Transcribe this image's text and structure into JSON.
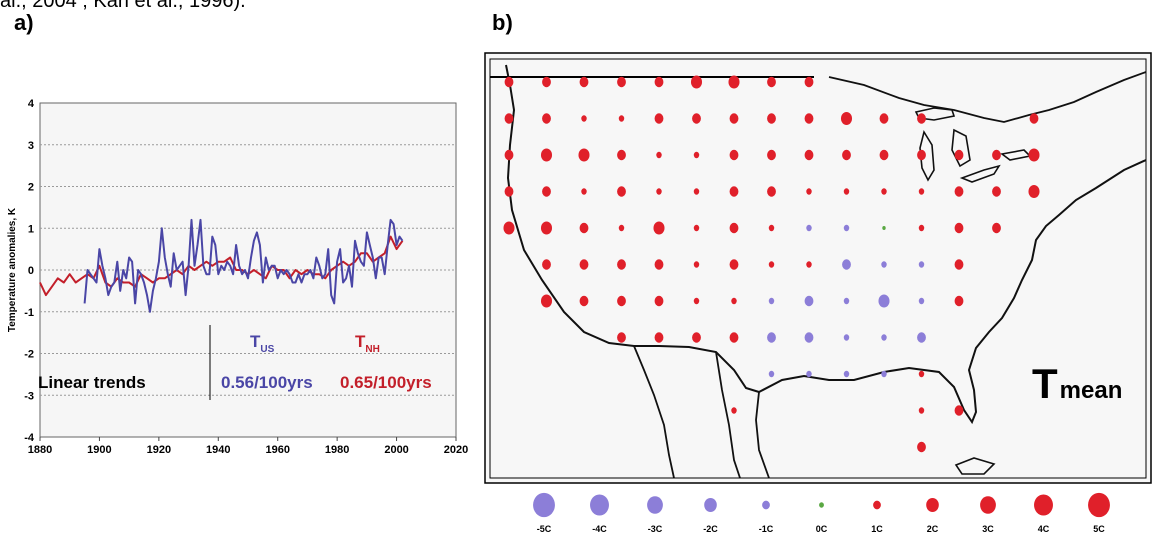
{
  "top_text": "al., 2004 ; Karl et al., 1996).",
  "panel_a_label": "a)",
  "panel_b_label": "b)",
  "colors": {
    "us_series": "#4a46a6",
    "nh_series": "#c31f2a",
    "dot_red": "#e0202a",
    "dot_blue": "#8c7ed8",
    "dot_green": "#5aa843",
    "grid": "#9a9a9a"
  },
  "chart_data": [
    {
      "type": "line",
      "title": "",
      "xlabel": "",
      "ylabel": "Temperature anomalies, K",
      "xlim": [
        1880,
        2020
      ],
      "ylim": [
        -4,
        4
      ],
      "xticks": [
        "1880",
        "1900",
        "1920",
        "1940",
        "1960",
        "1980",
        "2000",
        "2020"
      ],
      "yticks": [
        "-4",
        "-3",
        "-2",
        "-1",
        "0",
        "1",
        "2",
        "3",
        "4"
      ],
      "grid": "horizontal dashed",
      "legend_labels": {
        "linear_trends_label": "Linear trends",
        "us_label": "T",
        "us_sub": "US",
        "nh_label": "T",
        "nh_sub": "NH",
        "us_trend": "0.56/100yrs",
        "nh_trend": "0.65/100yrs"
      },
      "series": [
        {
          "name": "T_US",
          "color": "#4a46a6",
          "x": [
            1895,
            1896,
            1897,
            1898,
            1899,
            1900,
            1901,
            1902,
            1903,
            1904,
            1905,
            1906,
            1907,
            1908,
            1909,
            1910,
            1911,
            1912,
            1913,
            1914,
            1915,
            1916,
            1917,
            1918,
            1919,
            1920,
            1921,
            1922,
            1923,
            1924,
            1925,
            1926,
            1927,
            1928,
            1929,
            1930,
            1931,
            1932,
            1933,
            1934,
            1935,
            1936,
            1937,
            1938,
            1939,
            1940,
            1941,
            1942,
            1943,
            1944,
            1945,
            1946,
            1947,
            1948,
            1949,
            1950,
            1951,
            1952,
            1953,
            1954,
            1955,
            1956,
            1957,
            1958,
            1959,
            1960,
            1961,
            1962,
            1963,
            1964,
            1965,
            1966,
            1967,
            1968,
            1969,
            1970,
            1971,
            1972,
            1973,
            1974,
            1975,
            1976,
            1977,
            1978,
            1979,
            1980,
            1981,
            1982,
            1983,
            1984,
            1985,
            1986,
            1987,
            1988,
            1989,
            1990,
            1991,
            1992,
            1993,
            1994,
            1995,
            1996,
            1997,
            1998,
            1999,
            2000,
            2001,
            2002
          ],
          "y": [
            -0.8,
            0.0,
            -0.1,
            -0.2,
            -0.3,
            0.5,
            0.1,
            -0.2,
            -0.6,
            -0.4,
            -0.3,
            0.2,
            -0.5,
            0.0,
            -0.2,
            0.3,
            0.2,
            -0.8,
            0.0,
            -0.1,
            -0.3,
            -0.6,
            -1.0,
            -0.5,
            -0.2,
            0.2,
            1.0,
            0.3,
            -0.1,
            -0.4,
            0.4,
            0.0,
            0.1,
            0.2,
            -0.6,
            0.1,
            1.2,
            0.1,
            0.6,
            1.2,
            0.1,
            -0.1,
            -0.1,
            0.8,
            0.6,
            -0.1,
            0.1,
            0.0,
            0.2,
            0.1,
            -0.1,
            0.6,
            0.1,
            -0.1,
            0.0,
            -0.2,
            0.3,
            0.7,
            0.9,
            0.6,
            -0.3,
            0.3,
            0.0,
            0.1,
            0.1,
            -0.2,
            0.0,
            -0.1,
            0.0,
            -0.1,
            -0.3,
            -0.3,
            -0.1,
            -0.3,
            -0.1,
            -0.1,
            0.0,
            -0.2,
            0.3,
            0.1,
            -0.2,
            -0.1,
            0.5,
            -0.6,
            -0.8,
            0.2,
            0.5,
            -0.3,
            -0.2,
            0.1,
            -0.4,
            0.7,
            0.4,
            0.2,
            0.1,
            0.9,
            0.6,
            0.3,
            -0.2,
            0.3,
            0.3,
            -0.1,
            0.6,
            1.2,
            1.1,
            0.6,
            0.8,
            0.7
          ]
        },
        {
          "name": "T_NH",
          "color": "#c31f2a",
          "x": [
            1880,
            1882,
            1884,
            1886,
            1888,
            1890,
            1892,
            1894,
            1896,
            1898,
            1900,
            1902,
            1904,
            1906,
            1908,
            1910,
            1912,
            1914,
            1916,
            1918,
            1920,
            1922,
            1924,
            1926,
            1928,
            1930,
            1932,
            1934,
            1936,
            1938,
            1940,
            1942,
            1944,
            1946,
            1948,
            1950,
            1952,
            1954,
            1956,
            1958,
            1960,
            1962,
            1964,
            1966,
            1968,
            1970,
            1972,
            1974,
            1976,
            1978,
            1980,
            1982,
            1984,
            1986,
            1988,
            1990,
            1992,
            1994,
            1996,
            1998,
            2000,
            2002
          ],
          "y": [
            -0.3,
            -0.6,
            -0.4,
            -0.2,
            -0.3,
            -0.1,
            -0.3,
            -0.2,
            -0.1,
            -0.2,
            0.1,
            -0.3,
            -0.4,
            -0.2,
            -0.3,
            -0.3,
            -0.4,
            -0.1,
            -0.2,
            -0.3,
            -0.2,
            -0.2,
            -0.1,
            0.0,
            -0.1,
            0.1,
            0.0,
            0.1,
            0.2,
            0.1,
            0.2,
            0.2,
            0.3,
            0.0,
            0.0,
            -0.1,
            0.0,
            -0.1,
            -0.2,
            0.1,
            0.0,
            0.0,
            -0.2,
            0.0,
            -0.1,
            0.0,
            -0.1,
            -0.1,
            -0.2,
            0.0,
            0.1,
            0.2,
            0.1,
            0.2,
            0.4,
            0.4,
            0.2,
            0.3,
            0.4,
            0.8,
            0.5,
            0.7
          ]
        }
      ]
    },
    {
      "type": "scatter",
      "title": "",
      "annotation_main": "T",
      "annotation_sub": "mean",
      "legend": {
        "placement": "bottom",
        "entries": [
          {
            "label": "-5C",
            "value": -5
          },
          {
            "label": "-4C",
            "value": -4
          },
          {
            "label": "-3C",
            "value": -3
          },
          {
            "label": "-2C",
            "value": -2
          },
          {
            "label": "-1C",
            "value": -1
          },
          {
            "label": "0C",
            "value": 0
          },
          {
            "label": "1C",
            "value": 1
          },
          {
            "label": "2C",
            "value": 2
          },
          {
            "label": "3C",
            "value": 3
          },
          {
            "label": "4C",
            "value": 4
          },
          {
            "label": "5C",
            "value": 5
          }
        ]
      },
      "grid_columns": 16,
      "grid_rows": 11,
      "points": [
        {
          "col": 0,
          "row": 0,
          "value": 2
        },
        {
          "col": 1,
          "row": 0,
          "value": 2
        },
        {
          "col": 2,
          "row": 0,
          "value": 2
        },
        {
          "col": 3,
          "row": 0,
          "value": 2
        },
        {
          "col": 4,
          "row": 0,
          "value": 2
        },
        {
          "col": 5,
          "row": 0,
          "value": 3
        },
        {
          "col": 6,
          "row": 0,
          "value": 3
        },
        {
          "col": 7,
          "row": 0,
          "value": 2
        },
        {
          "col": 8,
          "row": 0,
          "value": 2
        },
        {
          "col": 0,
          "row": 1,
          "value": 2
        },
        {
          "col": 1,
          "row": 1,
          "value": 2
        },
        {
          "col": 2,
          "row": 1,
          "value": 1
        },
        {
          "col": 3,
          "row": 1,
          "value": 1
        },
        {
          "col": 4,
          "row": 1,
          "value": 2
        },
        {
          "col": 5,
          "row": 1,
          "value": 2
        },
        {
          "col": 6,
          "row": 1,
          "value": 2
        },
        {
          "col": 7,
          "row": 1,
          "value": 2
        },
        {
          "col": 8,
          "row": 1,
          "value": 2
        },
        {
          "col": 9,
          "row": 1,
          "value": 3
        },
        {
          "col": 10,
          "row": 1,
          "value": 2
        },
        {
          "col": 11,
          "row": 1,
          "value": 2
        },
        {
          "col": 14,
          "row": 1,
          "value": 2
        },
        {
          "col": 0,
          "row": 2,
          "value": 2
        },
        {
          "col": 1,
          "row": 2,
          "value": 3
        },
        {
          "col": 2,
          "row": 2,
          "value": 3
        },
        {
          "col": 3,
          "row": 2,
          "value": 2
        },
        {
          "col": 4,
          "row": 2,
          "value": 1
        },
        {
          "col": 5,
          "row": 2,
          "value": 1
        },
        {
          "col": 6,
          "row": 2,
          "value": 2
        },
        {
          "col": 7,
          "row": 2,
          "value": 2
        },
        {
          "col": 8,
          "row": 2,
          "value": 2
        },
        {
          "col": 9,
          "row": 2,
          "value": 2
        },
        {
          "col": 10,
          "row": 2,
          "value": 2
        },
        {
          "col": 11,
          "row": 2,
          "value": 2
        },
        {
          "col": 12,
          "row": 2,
          "value": 2
        },
        {
          "col": 13,
          "row": 2,
          "value": 2
        },
        {
          "col": 14,
          "row": 2,
          "value": 3
        },
        {
          "col": 0,
          "row": 3,
          "value": 2
        },
        {
          "col": 1,
          "row": 3,
          "value": 2
        },
        {
          "col": 2,
          "row": 3,
          "value": 1
        },
        {
          "col": 3,
          "row": 3,
          "value": 2
        },
        {
          "col": 4,
          "row": 3,
          "value": 1
        },
        {
          "col": 5,
          "row": 3,
          "value": 1
        },
        {
          "col": 6,
          "row": 3,
          "value": 2
        },
        {
          "col": 7,
          "row": 3,
          "value": 2
        },
        {
          "col": 8,
          "row": 3,
          "value": 1
        },
        {
          "col": 9,
          "row": 3,
          "value": 1
        },
        {
          "col": 10,
          "row": 3,
          "value": 1
        },
        {
          "col": 11,
          "row": 3,
          "value": 1
        },
        {
          "col": 12,
          "row": 3,
          "value": 2
        },
        {
          "col": 13,
          "row": 3,
          "value": 2
        },
        {
          "col": 14,
          "row": 3,
          "value": 3
        },
        {
          "col": 0,
          "row": 4,
          "value": 3
        },
        {
          "col": 1,
          "row": 4,
          "value": 3
        },
        {
          "col": 2,
          "row": 4,
          "value": 2
        },
        {
          "col": 3,
          "row": 4,
          "value": 1
        },
        {
          "col": 4,
          "row": 4,
          "value": 3
        },
        {
          "col": 5,
          "row": 4,
          "value": 1
        },
        {
          "col": 6,
          "row": 4,
          "value": 2
        },
        {
          "col": 7,
          "row": 4,
          "value": 1
        },
        {
          "col": 8,
          "row": 4,
          "value": -1
        },
        {
          "col": 9,
          "row": 4,
          "value": -1
        },
        {
          "col": 10,
          "row": 4,
          "value": 0
        },
        {
          "col": 11,
          "row": 4,
          "value": 1
        },
        {
          "col": 12,
          "row": 4,
          "value": 2
        },
        {
          "col": 13,
          "row": 4,
          "value": 2
        },
        {
          "col": 1,
          "row": 5,
          "value": 2
        },
        {
          "col": 2,
          "row": 5,
          "value": 2
        },
        {
          "col": 3,
          "row": 5,
          "value": 2
        },
        {
          "col": 4,
          "row": 5,
          "value": 2
        },
        {
          "col": 5,
          "row": 5,
          "value": 1
        },
        {
          "col": 6,
          "row": 5,
          "value": 2
        },
        {
          "col": 7,
          "row": 5,
          "value": 1
        },
        {
          "col": 8,
          "row": 5,
          "value": 1
        },
        {
          "col": 9,
          "row": 5,
          "value": -2
        },
        {
          "col": 10,
          "row": 5,
          "value": -1
        },
        {
          "col": 11,
          "row": 5,
          "value": -1
        },
        {
          "col": 12,
          "row": 5,
          "value": 2
        },
        {
          "col": 1,
          "row": 6,
          "value": 3
        },
        {
          "col": 2,
          "row": 6,
          "value": 2
        },
        {
          "col": 3,
          "row": 6,
          "value": 2
        },
        {
          "col": 4,
          "row": 6,
          "value": 2
        },
        {
          "col": 5,
          "row": 6,
          "value": 1
        },
        {
          "col": 6,
          "row": 6,
          "value": 1
        },
        {
          "col": 7,
          "row": 6,
          "value": -1
        },
        {
          "col": 8,
          "row": 6,
          "value": -2
        },
        {
          "col": 9,
          "row": 6,
          "value": -1
        },
        {
          "col": 10,
          "row": 6,
          "value": -3
        },
        {
          "col": 11,
          "row": 6,
          "value": -1
        },
        {
          "col": 12,
          "row": 6,
          "value": 2
        },
        {
          "col": 3,
          "row": 7,
          "value": 2
        },
        {
          "col": 4,
          "row": 7,
          "value": 2
        },
        {
          "col": 5,
          "row": 7,
          "value": 2
        },
        {
          "col": 6,
          "row": 7,
          "value": 2
        },
        {
          "col": 7,
          "row": 7,
          "value": -2
        },
        {
          "col": 8,
          "row": 7,
          "value": -2
        },
        {
          "col": 9,
          "row": 7,
          "value": -1
        },
        {
          "col": 10,
          "row": 7,
          "value": -1
        },
        {
          "col": 11,
          "row": 7,
          "value": -2
        },
        {
          "col": 7,
          "row": 8,
          "value": -1
        },
        {
          "col": 8,
          "row": 8,
          "value": -1
        },
        {
          "col": 9,
          "row": 8,
          "value": -1
        },
        {
          "col": 10,
          "row": 8,
          "value": -1
        },
        {
          "col": 11,
          "row": 8,
          "value": 1
        },
        {
          "col": 6,
          "row": 9,
          "value": 1
        },
        {
          "col": 11,
          "row": 9,
          "value": 1
        },
        {
          "col": 12,
          "row": 9,
          "value": 2
        },
        {
          "col": 11,
          "row": 10,
          "value": 2
        }
      ]
    }
  ]
}
